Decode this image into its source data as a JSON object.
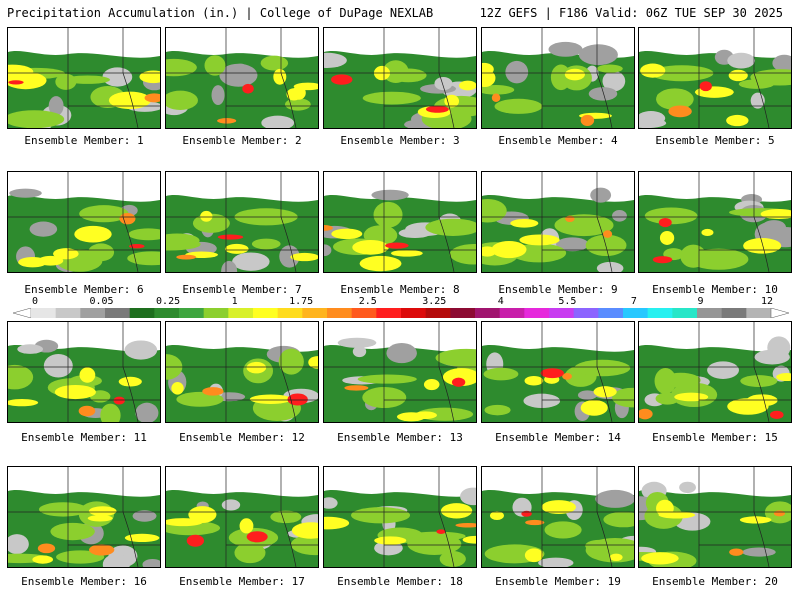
{
  "header": {
    "left": "Precipitation Accumulation (in.) | College of DuPage NEXLAB",
    "right": "12Z GEFS | F186 Valid: 06Z TUE SEP 30 2025"
  },
  "legend": {
    "ticks": [
      "0",
      "0.05",
      "0.25",
      "1",
      "1.75",
      "2.5",
      "3.25",
      "4",
      "5.5",
      "7",
      "9",
      "12"
    ],
    "colors": [
      "#e6e6e6",
      "#c8c8c8",
      "#a0a0a0",
      "#7a7a7a",
      "#1e6e1e",
      "#2e8b2e",
      "#3fa53f",
      "#8ccf2e",
      "#d8f02a",
      "#ffff22",
      "#ffdc1e",
      "#ffb41e",
      "#ff8c1e",
      "#ff5a1e",
      "#ff1e1e",
      "#dc0a0a",
      "#b40a0a",
      "#8c0a32",
      "#a0146e",
      "#c81eaa",
      "#e628dc",
      "#c83cf0",
      "#8c64ff",
      "#5a8cff",
      "#28c8ff",
      "#28f0f0",
      "#28e6c8",
      "#969696",
      "#7a7a7a",
      "#b4b4b4"
    ]
  },
  "members": [
    {
      "label": "Ensemble Member: 1"
    },
    {
      "label": "Ensemble Member: 2"
    },
    {
      "label": "Ensemble Member: 3"
    },
    {
      "label": "Ensemble Member: 4"
    },
    {
      "label": "Ensemble Member: 5"
    },
    {
      "label": "Ensemble Member: 6"
    },
    {
      "label": "Ensemble Member: 7"
    },
    {
      "label": "Ensemble Member: 8"
    },
    {
      "label": "Ensemble Member: 9"
    },
    {
      "label": "Ensemble Member: 10"
    },
    {
      "label": "Ensemble Member: 11"
    },
    {
      "label": "Ensemble Member: 12"
    },
    {
      "label": "Ensemble Member: 13"
    },
    {
      "label": "Ensemble Member: 14"
    },
    {
      "label": "Ensemble Member: 15"
    },
    {
      "label": "Ensemble Member: 16"
    },
    {
      "label": "Ensemble Member: 17"
    },
    {
      "label": "Ensemble Member: 18"
    },
    {
      "label": "Ensemble Member: 19"
    },
    {
      "label": "Ensemble Member: 20"
    }
  ]
}
